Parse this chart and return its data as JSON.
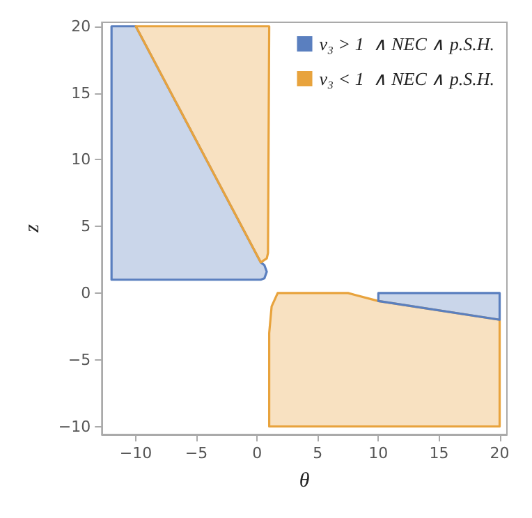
{
  "chart_data": {
    "type": "area",
    "xlabel": "θ",
    "ylabel": "z",
    "xlim": [
      -12.8,
      20.6
    ],
    "ylim": [
      -10.6,
      20.3
    ],
    "xticks": [
      -10,
      -5,
      0,
      5,
      10,
      15,
      20
    ],
    "yticks": [
      -10,
      -5,
      0,
      5,
      10,
      15,
      20
    ],
    "legend": "top right",
    "series": [
      {
        "name": "ν₃ > 1  ∧ NEC ∧ p.S.H.",
        "color": "#5a7fbf",
        "x": [
          -12,
          -10,
          0.3,
          0.6,
          0.8,
          0.6,
          0.3,
          -12
        ],
        "values": [
          20,
          20,
          2.3,
          2.1,
          1.6,
          1.1,
          1,
          1
        ]
      },
      {
        "name": "ν₃ < 1  ∧ NEC ∧ p.S.H.",
        "color": "#e8a33d",
        "x": [
          -10,
          1,
          0.9,
          0.8,
          0.3
        ],
        "values": [
          20,
          20,
          3,
          2.6,
          2.3
        ]
      },
      {
        "color": "#e8a33d",
        "x": [
          1,
          1,
          1.2,
          1.7,
          7.5,
          10,
          20,
          20
        ],
        "values": [
          -10,
          -3,
          -1,
          0,
          0,
          -0.6,
          -2,
          -10
        ]
      },
      {
        "color": "#5a7fbf",
        "x": [
          10,
          20,
          20,
          10
        ],
        "values": [
          0,
          0,
          -2,
          -0.6
        ]
      }
    ]
  }
}
